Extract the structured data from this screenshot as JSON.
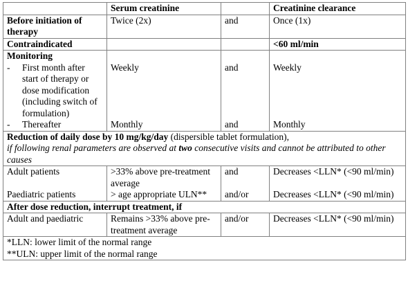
{
  "header": {
    "serum": "Serum creatinine",
    "clearance": "Creatinine clearance"
  },
  "rows": {
    "before": {
      "label": "Before initiation of therapy",
      "serum": "Twice (2x)",
      "conj": "and",
      "clearance": "Once (1x)"
    },
    "contraindicated": {
      "label": "Contraindicated",
      "clearance": "<60 ml/min"
    },
    "monitoring": {
      "label": "Monitoring",
      "items": [
        {
          "marker": "-",
          "label": "First month after start of therapy or dose modification (including switch of formulation)",
          "serum": "Weekly",
          "conj": "and",
          "clearance": "Weekly"
        },
        {
          "marker": "-",
          "label": "Thereafter",
          "serum": "Monthly",
          "conj": "and",
          "clearance": "Monthly"
        }
      ]
    },
    "reduction": {
      "heading": "Reduction of daily dose by 10 mg/kg/day",
      "heading_note": " (dispersible tablet formulation),",
      "condition_pre": "if following renal parameters are observed at ",
      "condition_emphasis": "two",
      "condition_post": " consecutive visits and cannot be attributed to other causes",
      "items": [
        {
          "label": "Adult patients",
          "serum": ">33% above pre-treatment average",
          "conj": "and",
          "clearance": "Decreases <LLN* (<90 ml/min)"
        },
        {
          "label": "Paediatric patients",
          "serum": "> age appropriate ULN**",
          "conj": "and/or",
          "clearance": "Decreases <LLN* (<90 ml/min)"
        }
      ]
    },
    "interrupt": {
      "heading": "After dose reduction, interrupt treatment, if",
      "items": [
        {
          "label": "Adult and paediatric",
          "serum": "Remains >33% above pre-treatment average",
          "conj": "and/or",
          "clearance": "Decreases <LLN* (<90 ml/min)"
        }
      ]
    }
  },
  "footnotes": [
    "*LLN: lower limit of the normal range",
    "**ULN: upper limit of the normal range"
  ]
}
